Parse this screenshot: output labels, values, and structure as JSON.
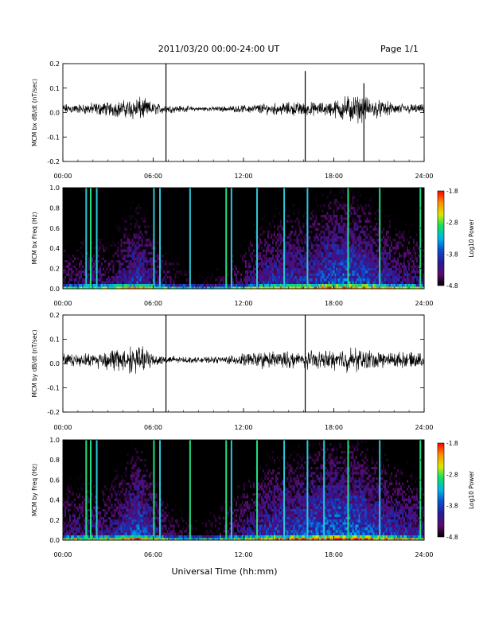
{
  "header": {
    "title": "2011/03/20  00:00-24:00 UT",
    "page": "Page 1/1"
  },
  "footer": {
    "xlabel": "Universal Time (hh:mm)"
  },
  "colors": {
    "trace": "#000000",
    "colormap": [
      "#000000",
      "#5a0a6e",
      "#2a1a9a",
      "#0a50d0",
      "#00b4e8",
      "#10e060",
      "#d8e800",
      "#ff8c00",
      "#ff0000"
    ]
  },
  "chart_data": [
    {
      "type": "line",
      "ylabel": "MCM bx dB/dt (nT/sec)",
      "x_ticks": [
        "00:00",
        "06:00",
        "12:00",
        "18:00",
        "24:00"
      ],
      "y_ticks": [
        "0.2",
        "0.1",
        "0.0",
        "-0.1",
        "-0.2"
      ],
      "xlim": [
        0,
        24
      ],
      "ylim": [
        -0.2,
        0.2
      ],
      "series": [
        {
          "x": [
            0,
            1,
            2,
            3,
            4,
            5,
            6,
            7,
            8,
            9,
            10,
            11,
            12,
            13,
            14,
            15,
            16,
            17,
            18,
            19,
            20,
            21,
            22,
            23,
            24
          ],
          "envelope": [
            0.025,
            0.022,
            0.03,
            0.035,
            0.04,
            0.06,
            0.03,
            0.02,
            0.015,
            0.01,
            0.012,
            0.014,
            0.018,
            0.025,
            0.028,
            0.032,
            0.035,
            0.03,
            0.04,
            0.07,
            0.06,
            0.04,
            0.03,
            0.025,
            0.02
          ]
        }
      ],
      "spikes": [
        {
          "x": 6.85,
          "ymin": -0.2,
          "ymax": 0.2
        },
        {
          "x": 16.1,
          "ymin": -0.2,
          "ymax": 0.17
        },
        {
          "x": 20.0,
          "ymin": -0.2,
          "ymax": 0.12
        }
      ]
    },
    {
      "type": "heatmap",
      "ylabel": "MCM bx Freq (Hz)",
      "x_ticks": [
        "00:00",
        "06:00",
        "12:00",
        "18:00",
        "24:00"
      ],
      "y_ticks": [
        "1.0",
        "0.8",
        "0.6",
        "0.4",
        "0.2",
        "0.0"
      ],
      "xlim": [
        0,
        24
      ],
      "ylim": [
        0,
        1.0
      ],
      "colorbar": {
        "label": "Log10 Power",
        "ticks": [
          "-1.8",
          "-2.8",
          "-3.8",
          "-4.8"
        ],
        "range": [
          -4.8,
          -1.8
        ]
      },
      "activity": [
        -3.9,
        -3.8,
        -3.7,
        -3.8,
        -3.5,
        -3.2,
        -3.6,
        -4.0,
        -4.2,
        -4.4,
        -4.3,
        -4.1,
        -3.8,
        -3.5,
        -3.4,
        -3.3,
        -3.3,
        -3.2,
        -3.0,
        -3.0,
        -3.1,
        -3.3,
        -3.5,
        -3.6,
        -3.7
      ],
      "stripes": [
        1.55,
        1.85,
        2.25,
        6.05,
        6.45,
        8.45,
        10.85,
        11.2,
        12.9,
        14.7,
        16.25,
        18.95,
        21.05,
        23.75
      ]
    },
    {
      "type": "line",
      "ylabel": "MCM by dB/dt (nT/sec)",
      "x_ticks": [
        "00:00",
        "06:00",
        "12:00",
        "18:00",
        "24:00"
      ],
      "y_ticks": [
        "0.2",
        "0.1",
        "0.0",
        "-0.1",
        "-0.2"
      ],
      "xlim": [
        0,
        24
      ],
      "ylim": [
        -0.2,
        0.2
      ],
      "series": [
        {
          "x": [
            0,
            1,
            2,
            3,
            4,
            5,
            6,
            7,
            8,
            9,
            10,
            11,
            12,
            13,
            14,
            15,
            16,
            17,
            18,
            19,
            20,
            21,
            22,
            23,
            24
          ],
          "envelope": [
            0.03,
            0.028,
            0.035,
            0.05,
            0.06,
            0.07,
            0.035,
            0.02,
            0.015,
            0.012,
            0.015,
            0.02,
            0.03,
            0.04,
            0.04,
            0.04,
            0.045,
            0.04,
            0.045,
            0.06,
            0.05,
            0.04,
            0.04,
            0.035,
            0.03
          ]
        }
      ],
      "spikes": [
        {
          "x": 6.85,
          "ymin": -0.2,
          "ymax": 0.2
        },
        {
          "x": 16.1,
          "ymin": -0.2,
          "ymax": 0.2
        }
      ]
    },
    {
      "type": "heatmap",
      "ylabel": "MCM by Freq (Hz)",
      "x_ticks": [
        "00:00",
        "06:00",
        "12:00",
        "18:00",
        "24:00"
      ],
      "y_ticks": [
        "1.0",
        "0.8",
        "0.6",
        "0.4",
        "0.2",
        "0.0"
      ],
      "xlim": [
        0,
        24
      ],
      "ylim": [
        0,
        1.0
      ],
      "colorbar": {
        "label": "Log10 Power",
        "ticks": [
          "-1.8",
          "-2.8",
          "-3.8",
          "-4.8"
        ],
        "range": [
          -4.8,
          -1.8
        ]
      },
      "activity": [
        -3.7,
        -3.6,
        -3.6,
        -3.6,
        -3.3,
        -3.0,
        -3.4,
        -3.9,
        -4.1,
        -4.2,
        -4.1,
        -3.9,
        -3.6,
        -3.4,
        -3.2,
        -3.2,
        -3.1,
        -3.0,
        -2.9,
        -2.9,
        -3.0,
        -3.2,
        -3.3,
        -3.4,
        -3.6
      ],
      "stripes": [
        1.55,
        1.85,
        2.25,
        6.05,
        6.45,
        8.45,
        10.85,
        11.2,
        12.9,
        14.7,
        16.25,
        17.35,
        18.95,
        21.05,
        23.75
      ]
    }
  ]
}
